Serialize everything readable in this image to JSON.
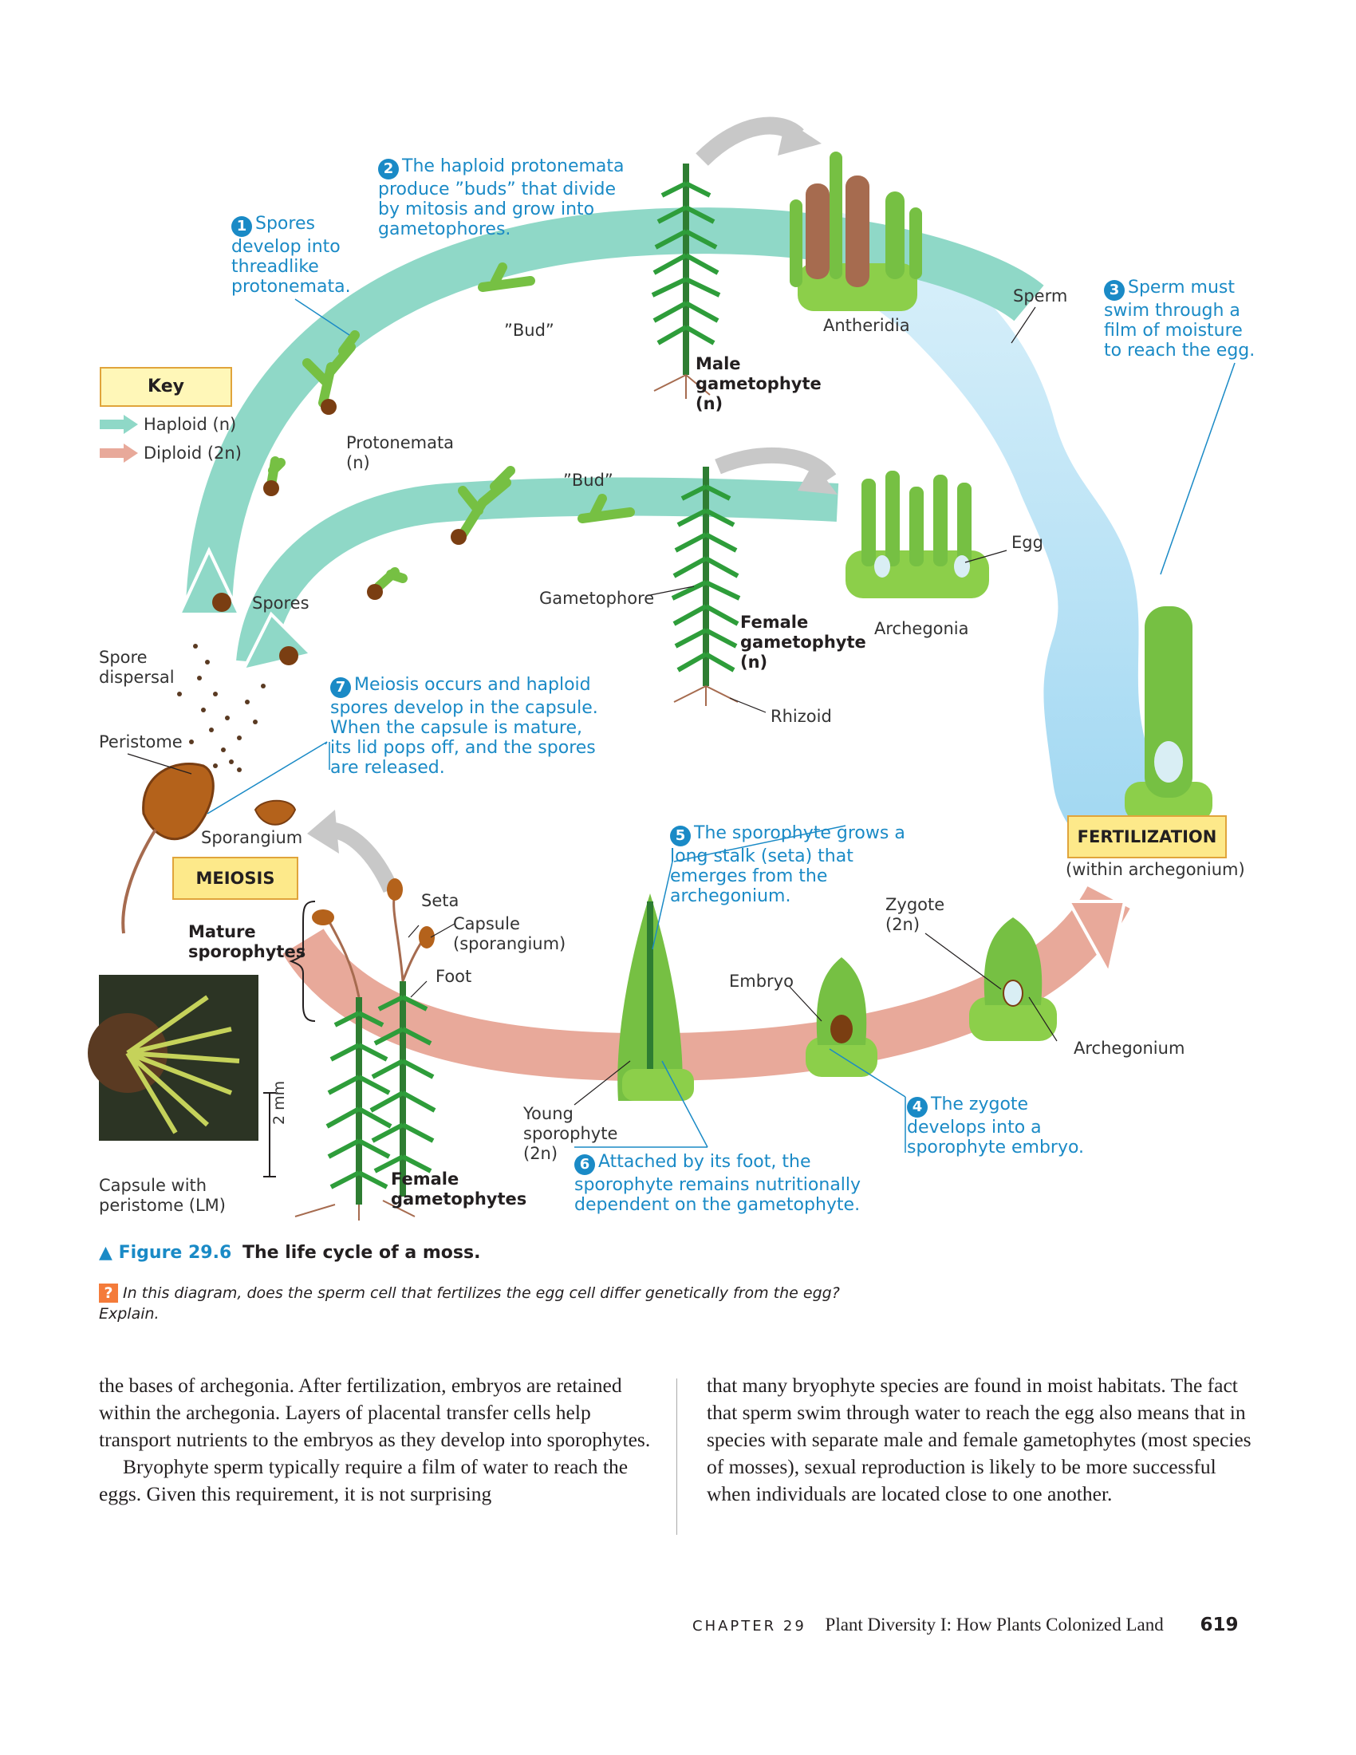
{
  "diagram": {
    "step1": {
      "num": "1",
      "text": "Spores develop into threadlike protonemata."
    },
    "step2": {
      "num": "2",
      "text": "The haploid protonemata produce ”buds” that divide by mitosis and grow into gametophores."
    },
    "step3": {
      "num": "3",
      "text": "Sperm must swim through a film of moisture to reach the egg."
    },
    "step4": {
      "num": "4",
      "text": "The zygote develops into a sporophyte embryo."
    },
    "step5": {
      "num": "5",
      "text": "The sporophyte grows a long stalk (seta) that emerges from the archegonium."
    },
    "step6": {
      "num": "6",
      "text": "Attached by its foot, the sporophyte remains nutritionally dependent on the gametophyte."
    },
    "step7": {
      "num": "7",
      "text": "Meiosis occurs and haploid spores develop in the capsule. When the capsule is mature, its lid pops off, and the spores are released."
    },
    "key": {
      "title": "Key",
      "haploid": "Haploid (n)",
      "diploid": "Diploid (2n)",
      "haploid_color": "#8fd8c7",
      "diploid_color": "#e8a99a"
    },
    "labels": {
      "bud1": "”Bud”",
      "bud2": "”Bud”",
      "antheridia": "Antheridia",
      "sperm": "Sperm",
      "male_gametophyte": "Male gametophyte",
      "male_n": "(n)",
      "protonemata": "Protonemata",
      "protonemata_n": "(n)",
      "egg": "Egg",
      "spores": "Spores",
      "gametophore": "Gametophore",
      "female_gametophyte": "Female gametophyte",
      "female_n": "(n)",
      "archegonia": "Archegonia",
      "spore_dispersal": "Spore dispersal",
      "rhizoid": "Rhizoid",
      "peristome": "Peristome",
      "sporangium": "Sporangium",
      "meiosis": "MEIOSIS",
      "fertilization": "FERTILIZATION",
      "within_archegonium": "(within archegonium)",
      "seta": "Seta",
      "capsule": "Capsule",
      "capsule_sporangium": "(sporangium)",
      "mature_sporophytes": "Mature sporophytes",
      "zygote": "Zygote",
      "zygote_2n": "(2n)",
      "foot": "Foot",
      "embryo": "Embryo",
      "archegonium": "Archegonium",
      "young_sporophyte": "Young sporophyte",
      "young_2n": "(2n)",
      "scale": "2 mm",
      "capsule_with_peristome": "Capsule with peristome (LM)",
      "female_gametophytes": "Female gametophytes"
    }
  },
  "figure": {
    "marker": "▲",
    "number": "Figure 29.6",
    "title": "The life cycle of a moss.",
    "question_icon": "?",
    "question": "In this diagram, does the sperm cell that fertilizes the egg cell differ genetically from the egg? Explain."
  },
  "body": {
    "left_p1": "the bases of archegonia. After fertilization, embryos are retained within the archegonia. Layers of placental transfer cells help transport nutrients to the embryos as they develop into sporophytes.",
    "left_p2": "Bryophyte sperm typically require a film of water to reach the eggs. Given this requirement, it is not surprising",
    "right_p1": "that many bryophyte species are found in moist habitats. The fact that sperm swim through water to reach the egg also means that in species with separate male and female gametophytes (most species of mosses), sexual reproduction is likely to be more successful when individuals are located close to one another."
  },
  "footer": {
    "chapter": "CHAPTER 29",
    "title": "Plant Diversity I: How Plants Colonized Land",
    "page": "619"
  }
}
